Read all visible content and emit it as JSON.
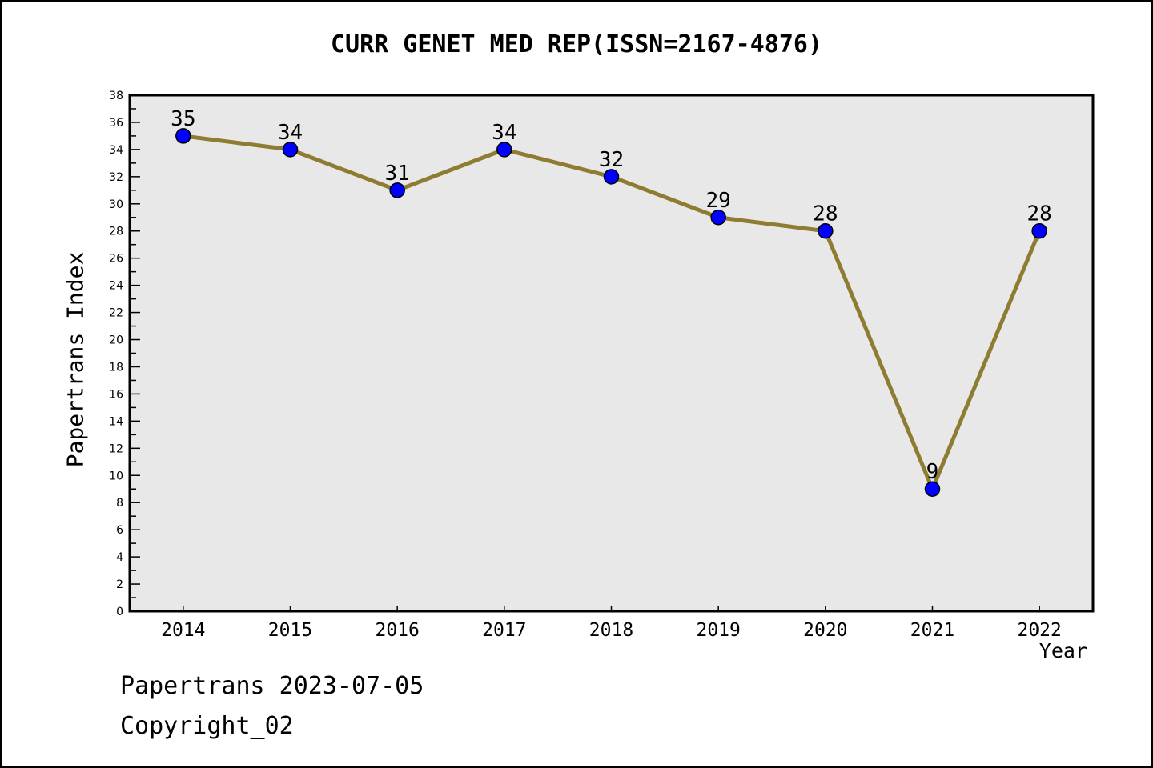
{
  "title": "CURR GENET MED REP(ISSN=2167-4876)",
  "footer": {
    "line1": "Papertrans 2023-07-05",
    "line2": "Copyright_02"
  },
  "chart_data": {
    "type": "line",
    "title": "CURR GENET MED REP(ISSN=2167-4876)",
    "x": [
      2014,
      2015,
      2016,
      2017,
      2018,
      2019,
      2020,
      2021,
      2022
    ],
    "series": [
      {
        "name": "Papertrans Index",
        "values": [
          35,
          34,
          31,
          34,
          32,
          29,
          28,
          9,
          28
        ]
      }
    ],
    "point_labels": [
      "35",
      "34",
      "31",
      "34",
      "32",
      "29",
      "28",
      "9",
      "28"
    ],
    "xlabel": "Year",
    "ylabel": "Papertrans Index",
    "ylim": [
      0,
      38
    ],
    "y_major_step": 2,
    "y_minor_step": 1,
    "grid": false,
    "legend": "none",
    "colors": {
      "line": "#8f7c33",
      "marker_fill": "#0000ff",
      "marker_edge": "#000000",
      "plot_background": "#e8e8e8",
      "frame": "#000000",
      "text": "#000000",
      "page_background": "#ffffff"
    }
  }
}
